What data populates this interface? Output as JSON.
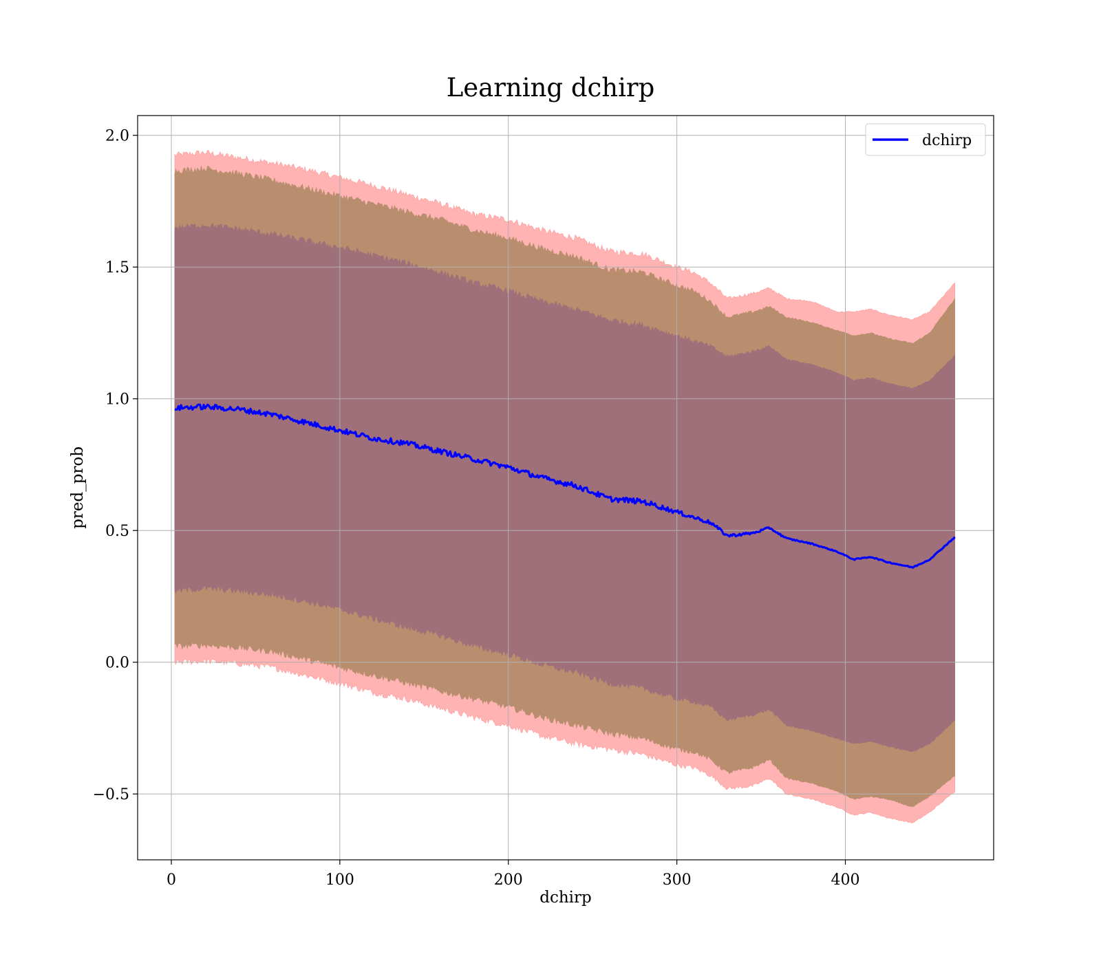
{
  "chart_data": {
    "type": "line",
    "title": "Learning dchirp",
    "xlabel": "dchirp",
    "ylabel": "pred_prob",
    "xlim": [
      -20,
      488
    ],
    "ylim": [
      -0.75,
      2.075
    ],
    "xticks": [
      0,
      100,
      200,
      300,
      400
    ],
    "xtick_labels": [
      "0",
      "100",
      "200",
      "300",
      "400"
    ],
    "yticks": [
      -0.5,
      0.0,
      0.5,
      1.0,
      1.5,
      2.0
    ],
    "ytick_labels": [
      "−0.5",
      "0.0",
      "0.5",
      "1.0",
      "1.5",
      "2.0"
    ],
    "grid": true,
    "legend": {
      "position": "top-right",
      "entries": [
        "dchirp"
      ]
    },
    "colors": {
      "line": "#0000ff",
      "band_outer": "#ff9999",
      "band_middle": "#b98e6e",
      "band_inner": "#a0707a",
      "grid": "#b0b0b0"
    },
    "series": [
      {
        "name": "dchirp",
        "x": [
          2,
          20,
          40,
          60,
          80,
          100,
          120,
          140,
          160,
          180,
          200,
          220,
          240,
          260,
          280,
          300,
          310,
          320,
          330,
          345,
          355,
          365,
          380,
          395,
          405,
          415,
          425,
          440,
          450,
          465
        ],
        "y": [
          0.965,
          0.97,
          0.96,
          0.94,
          0.91,
          0.88,
          0.85,
          0.83,
          0.8,
          0.77,
          0.74,
          0.7,
          0.67,
          0.62,
          0.61,
          0.57,
          0.55,
          0.53,
          0.48,
          0.49,
          0.51,
          0.47,
          0.45,
          0.42,
          0.39,
          0.4,
          0.38,
          0.36,
          0.39,
          0.475
        ]
      }
    ],
    "bands": [
      {
        "name": "outer",
        "x": [
          2,
          20,
          40,
          60,
          80,
          100,
          120,
          140,
          160,
          180,
          200,
          220,
          240,
          260,
          280,
          300,
          310,
          320,
          330,
          345,
          355,
          365,
          380,
          395,
          405,
          415,
          425,
          440,
          450,
          465
        ],
        "upper": [
          1.925,
          1.935,
          1.915,
          1.895,
          1.87,
          1.84,
          1.81,
          1.775,
          1.74,
          1.7,
          1.68,
          1.64,
          1.61,
          1.56,
          1.55,
          1.5,
          1.48,
          1.44,
          1.38,
          1.4,
          1.42,
          1.38,
          1.37,
          1.33,
          1.33,
          1.34,
          1.32,
          1.3,
          1.33,
          1.44
        ],
        "lower": [
          0.0,
          0.005,
          -0.005,
          -0.02,
          -0.05,
          -0.08,
          -0.115,
          -0.14,
          -0.175,
          -0.21,
          -0.24,
          -0.28,
          -0.31,
          -0.33,
          -0.35,
          -0.39,
          -0.4,
          -0.43,
          -0.48,
          -0.47,
          -0.44,
          -0.5,
          -0.52,
          -0.55,
          -0.58,
          -0.57,
          -0.59,
          -0.61,
          -0.57,
          -0.49
        ]
      },
      {
        "name": "middle",
        "x": [
          2,
          20,
          40,
          60,
          80,
          100,
          120,
          140,
          160,
          180,
          200,
          220,
          240,
          260,
          280,
          300,
          310,
          320,
          330,
          345,
          355,
          365,
          380,
          395,
          405,
          415,
          425,
          440,
          450,
          465
        ],
        "upper": [
          1.865,
          1.875,
          1.855,
          1.83,
          1.8,
          1.77,
          1.74,
          1.71,
          1.68,
          1.64,
          1.61,
          1.57,
          1.54,
          1.49,
          1.48,
          1.43,
          1.41,
          1.37,
          1.31,
          1.33,
          1.35,
          1.31,
          1.29,
          1.26,
          1.24,
          1.25,
          1.23,
          1.21,
          1.25,
          1.38
        ],
        "lower": [
          0.06,
          0.065,
          0.055,
          0.04,
          0.01,
          -0.02,
          -0.05,
          -0.08,
          -0.11,
          -0.14,
          -0.17,
          -0.21,
          -0.24,
          -0.27,
          -0.29,
          -0.33,
          -0.34,
          -0.37,
          -0.42,
          -0.4,
          -0.37,
          -0.44,
          -0.46,
          -0.49,
          -0.52,
          -0.51,
          -0.52,
          -0.55,
          -0.51,
          -0.43
        ]
      },
      {
        "name": "inner",
        "x": [
          2,
          20,
          40,
          60,
          80,
          100,
          120,
          140,
          160,
          180,
          200,
          220,
          240,
          260,
          280,
          300,
          310,
          320,
          330,
          345,
          355,
          365,
          380,
          395,
          405,
          415,
          425,
          440,
          450,
          465
        ],
        "upper": [
          1.65,
          1.66,
          1.645,
          1.625,
          1.6,
          1.575,
          1.545,
          1.515,
          1.48,
          1.44,
          1.41,
          1.37,
          1.34,
          1.3,
          1.28,
          1.24,
          1.22,
          1.2,
          1.16,
          1.18,
          1.2,
          1.15,
          1.13,
          1.1,
          1.07,
          1.08,
          1.06,
          1.04,
          1.07,
          1.165
        ],
        "lower": [
          0.27,
          0.28,
          0.27,
          0.255,
          0.23,
          0.2,
          0.165,
          0.13,
          0.1,
          0.06,
          0.03,
          -0.01,
          -0.04,
          -0.08,
          -0.1,
          -0.14,
          -0.15,
          -0.17,
          -0.22,
          -0.2,
          -0.18,
          -0.24,
          -0.26,
          -0.29,
          -0.31,
          -0.3,
          -0.32,
          -0.34,
          -0.31,
          -0.22
        ]
      }
    ]
  }
}
